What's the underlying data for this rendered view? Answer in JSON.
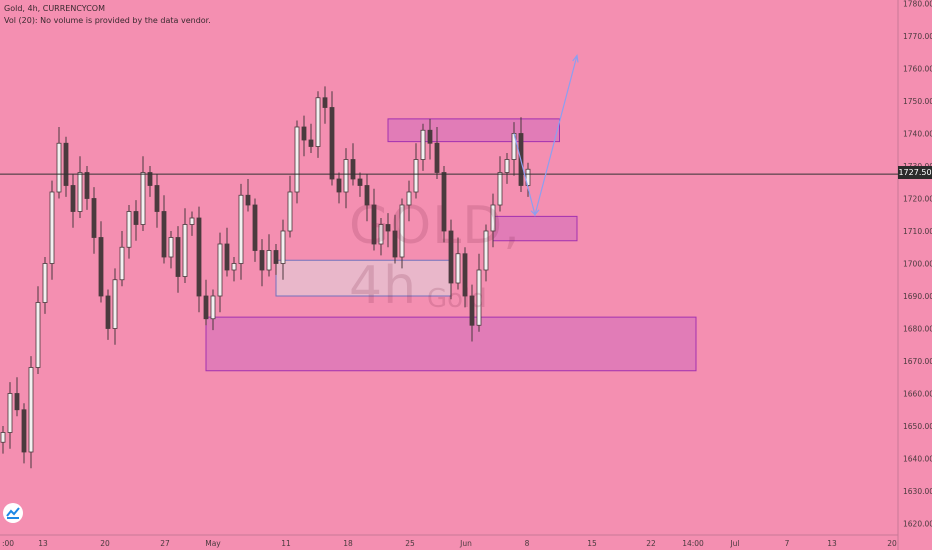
{
  "header": {
    "symbol_line": "Gold, 4h, CURRENCYCOM",
    "volume_line": "Vol (20): No volume is provided by the data vendor."
  },
  "watermark": {
    "symbol": "GOLD, 4h",
    "name": "Gold"
  },
  "current_price_label": "1727.50",
  "colors": {
    "background": "#f48fb1",
    "zone_fill": "#e07bb8",
    "zone_border": "#9b27af",
    "gray_zone_fill": "#e8bfcf",
    "gray_zone_border": "#5c6bc0",
    "arrow": "#8c9ff0",
    "candle": "#4a3a3e",
    "price_line": "#333333"
  },
  "chart_data": {
    "type": "candlestick",
    "title": "",
    "xlabel": "",
    "ylabel": "",
    "ylim": [
      1615,
      1785
    ],
    "y_ticks": [
      1620,
      1630,
      1640,
      1650,
      1660,
      1670,
      1680,
      1690,
      1700,
      1710,
      1720,
      1730,
      1740,
      1750,
      1760,
      1770,
      1780
    ],
    "y_tick_labels": [
      "1620.00",
      "1630.00",
      "1640.00",
      "1650.00",
      "1660.00",
      "1670.00",
      "1680.00",
      "1690.00",
      "1700.00",
      "1710.00",
      "1720.00",
      "1730.00",
      "1740.00",
      "1750.00",
      "1760.00",
      "1770.00",
      "1780.00"
    ],
    "x_tick_labels": [
      ":00",
      "13",
      "20",
      "27",
      "May",
      "11",
      "18",
      "25",
      "Jun",
      "8",
      "15",
      "22",
      "14:00",
      "Jul",
      "7",
      "13",
      "20"
    ],
    "current_price": 1727.5,
    "series": [
      {
        "values": [
          1648,
          1660,
          1655,
          1642,
          1668,
          1688,
          1700,
          1722,
          1737,
          1724,
          1716,
          1728,
          1720,
          1708,
          1690,
          1680,
          1695,
          1705,
          1716,
          1712,
          1728,
          1724,
          1716,
          1702,
          1708,
          1696,
          1712,
          1714,
          1690,
          1683,
          1690,
          1706,
          1698,
          1700,
          1721,
          1718,
          1704,
          1698,
          1704,
          1700,
          1710,
          1722,
          1742,
          1738,
          1736,
          1751,
          1748,
          1726,
          1722,
          1732,
          1726,
          1724,
          1718,
          1706,
          1712,
          1710,
          1702,
          1718,
          1722,
          1732,
          1741,
          1737,
          1728,
          1710,
          1694,
          1703,
          1690,
          1681,
          1698,
          1710,
          1718,
          1728,
          1732,
          1740,
          1724,
          1729
        ]
      }
    ],
    "zones": [
      {
        "name": "",
        "from": 1737.5,
        "to": 1744.5,
        "start_index": 55,
        "end_index": 79.5
      },
      {
        "name": "",
        "from": 1707.0,
        "to": 1714.5,
        "start_index": 70,
        "end_index": 82
      },
      {
        "name": "",
        "from": 1667.0,
        "to": 1683.5,
        "start_index": 29,
        "end_index": 99
      },
      {
        "name": "",
        "from": 1690.0,
        "to": 1701.0,
        "start_index": 39,
        "end_index": 64
      }
    ],
    "projection_path": [
      [
        1740,
        73
      ],
      [
        1715,
        76
      ],
      [
        1764,
        82
      ]
    ]
  }
}
